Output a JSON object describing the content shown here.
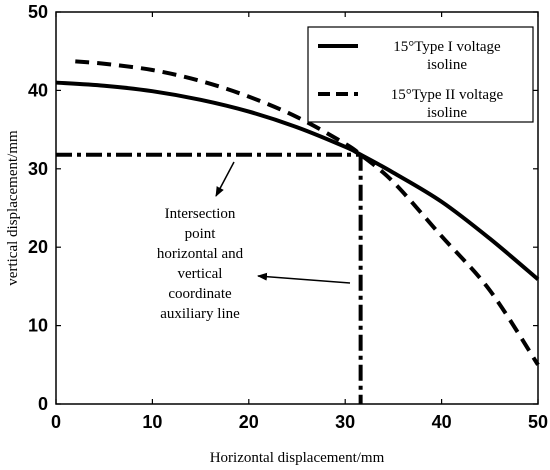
{
  "chart_data": {
    "type": "line",
    "title": "",
    "xlabel": "Horizontal displacement/mm",
    "ylabel": "vertical displacement/mm",
    "xlim": [
      0,
      50
    ],
    "ylim": [
      0,
      50
    ],
    "xticks": [
      "0",
      "10",
      "20",
      "30",
      "40",
      "50"
    ],
    "yticks": [
      "0",
      "10",
      "20",
      "30",
      "40",
      "50"
    ],
    "grid": false,
    "legend_position": "top-right",
    "series": [
      {
        "name": "15°Type I voltage isoline",
        "name_lines": [
          "15°Type I voltage",
          "isoline"
        ],
        "style": "solid",
        "color": "#000000",
        "x": [
          0,
          5,
          10,
          15,
          20,
          25,
          30,
          31.6,
          35,
          40,
          45,
          50
        ],
        "y": [
          41,
          40.6,
          39.9,
          38.8,
          37.3,
          35.3,
          32.8,
          31.8,
          29.5,
          25.8,
          21.1,
          15.9
        ]
      },
      {
        "name": "15°Type II voltage isoline",
        "name_lines": [
          "15°Type II voltage",
          "isoline"
        ],
        "style": "dashed",
        "color": "#000000",
        "x": [
          2,
          5,
          10,
          15,
          20,
          25,
          30,
          31.6,
          35,
          40,
          45,
          50
        ],
        "y": [
          43.7,
          43.4,
          42.6,
          41.2,
          39.2,
          36.6,
          33.2,
          31.8,
          28.3,
          21.4,
          14.5,
          5
        ]
      }
    ],
    "intersection": {
      "x": 31.6,
      "y": 31.8
    },
    "annotation": {
      "lines": [
        "Intersection",
        "point",
        "horizontal and",
        "vertical",
        "coordinate",
        "auxiliary line"
      ]
    }
  }
}
